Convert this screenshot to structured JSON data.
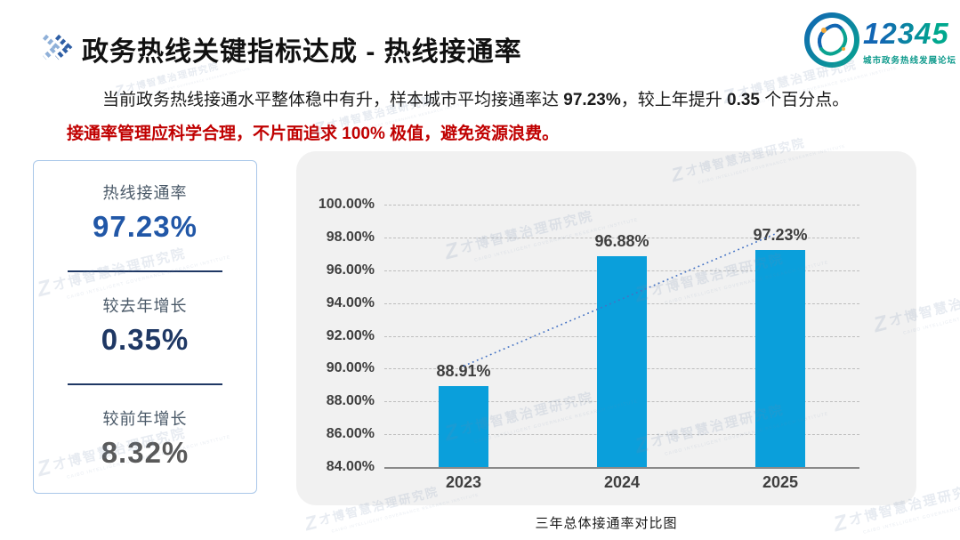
{
  "slide": {
    "header": {
      "title": "政务热线关键指标达成 - 热线接通率",
      "logo": {
        "number": "12345",
        "tagline": "城市政务热线发展论坛"
      }
    },
    "intro": {
      "part1": "当前政务热线接通水平整体稳中有升，样本城市平均接通率达 ",
      "highlight1": "97.23%",
      "part2": "，较上年提升 ",
      "highlight2": "0.35",
      "part3": " 个百分点。",
      "warning": "接通率管理应科学合理，不片面追求 100% 极值，避免资源浪费。"
    },
    "stats": {
      "items": [
        {
          "label": "热线接通率",
          "value": "97.23%",
          "color": "#2157A7"
        },
        {
          "label": "较去年增长",
          "value": "0.35%",
          "color": "#1F3864"
        },
        {
          "label": "较前年增长",
          "value": "8.32%",
          "color": "#595959"
        }
      ]
    },
    "watermark": {
      "logo": "Z",
      "text": "才博智慧治理研究院",
      "subtext": "CAIBO INTELLIGENT GOVERNANCE RESEARCH INSTITUTE"
    }
  },
  "chart_data": {
    "type": "bar",
    "title": "三年总体接通率对比图",
    "categories": [
      "2023",
      "2024",
      "2025"
    ],
    "values": [
      88.91,
      96.88,
      97.23
    ],
    "data_labels": [
      "88.91%",
      "96.88%",
      "97.23%"
    ],
    "xlabel": "",
    "ylabel": "",
    "ylim": [
      84,
      100
    ],
    "ytick_labels": [
      "84.00%",
      "86.00%",
      "88.00%",
      "90.00%",
      "92.00%",
      "94.00%",
      "96.00%",
      "98.00%",
      "100.00%"
    ],
    "grid": "horizontal-dashed",
    "legend": "none",
    "bar_color": "#0A9FDB",
    "trendline": {
      "type": "linear",
      "style": "dotted",
      "color": "#4472C4",
      "from": "2023",
      "to": "2025"
    }
  }
}
